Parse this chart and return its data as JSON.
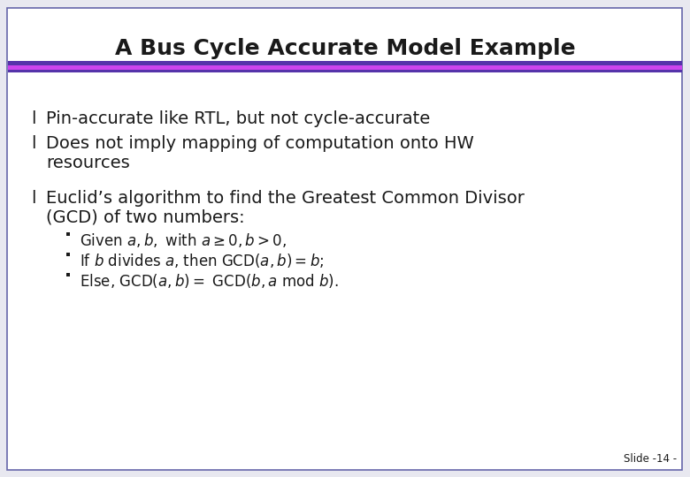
{
  "title": "A Bus Cycle Accurate Model Example",
  "title_fontsize": 18,
  "slide_bg": "#e8e8f0",
  "content_bg": "#ffffff",
  "border_color": "#6666aa",
  "stripe_dark1": "#5533aa",
  "stripe_light": "#cc44ee",
  "stripe_dark2": "#5533aa",
  "text_color": "#1a1a1a",
  "slide_number": "Slide -14 -",
  "bullet_char": "l",
  "fs_bullet": 14,
  "fs_sub": 12,
  "bullet1": "Pin-accurate like RTL, but not cycle-accurate",
  "bullet2_line1": "Does not imply mapping of computation onto HW",
  "bullet2_line2": "resources",
  "bullet3_line1": "Euclid’s algorithm to find the Greatest Common Divisor",
  "bullet3_line2": "(GCD) of two numbers:",
  "sub1": "Given $a, b,$ with $a \\geq 0, b > 0,$",
  "sub2": "If $b$ divides $a$, then GCD$(a, b) = b$;",
  "sub3": "Else, GCD$(a, b) =$ GCD$(b, a$ mod $b).$"
}
